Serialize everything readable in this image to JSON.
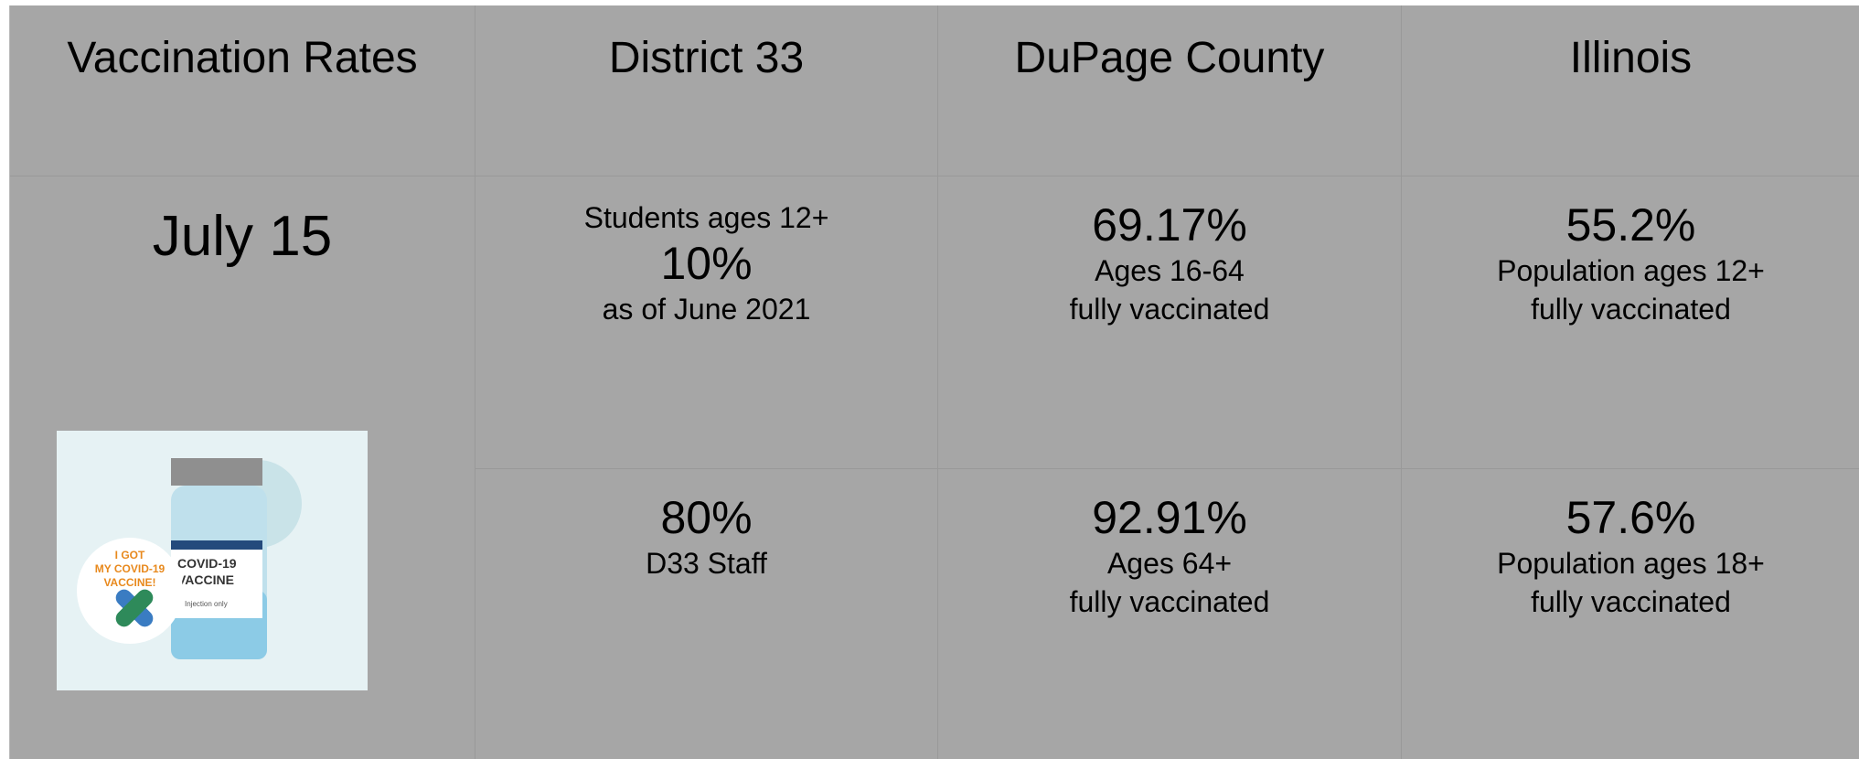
{
  "header": [
    "Vaccination Rates",
    "District 33",
    "DuPage County",
    "Illinois"
  ],
  "date": "July 15",
  "image": {
    "badge": [
      "I GOT",
      "MY COVID-19",
      "VACCINE!"
    ],
    "label": [
      "COVID-19",
      "VACCINE"
    ],
    "note": "Injection only"
  },
  "rows": [
    [
      {
        "before": [
          "Students ages 12+"
        ],
        "value": "10%",
        "after": [
          "as of June 2021"
        ]
      },
      {
        "value": "69.17%",
        "after": [
          "Ages 16-64",
          "fully vaccinated"
        ]
      },
      {
        "value": "55.2%",
        "after": [
          "Population ages 12+",
          "fully vaccinated"
        ]
      }
    ],
    [
      {
        "value": "80%",
        "after": [
          "D33 Staff"
        ]
      },
      {
        "value": "92.91%",
        "after": [
          "Ages 64+",
          "fully vaccinated"
        ]
      },
      {
        "value": "57.6%",
        "after": [
          "Population ages 18+",
          "fully vaccinated"
        ]
      }
    ]
  ]
}
